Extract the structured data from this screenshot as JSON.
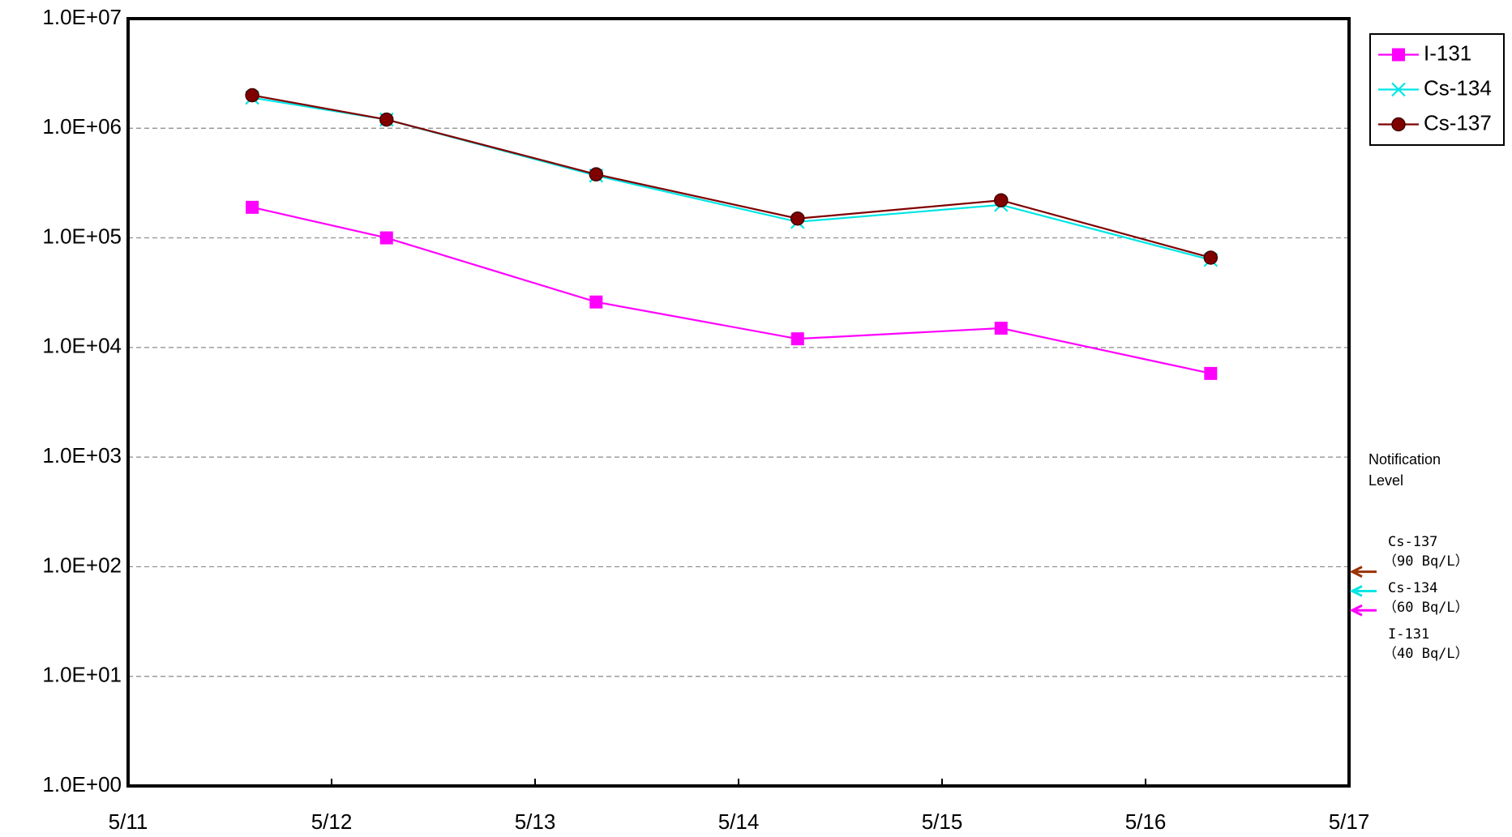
{
  "chart_data": {
    "type": "line",
    "log_y": true,
    "grid": true,
    "legend": "top-right",
    "x": [
      11.61,
      12.27,
      13.3,
      14.29,
      15.29,
      16.32
    ],
    "xlim": [
      11,
      17
    ],
    "xticks": [
      {
        "value": 11,
        "label": "5/11"
      },
      {
        "value": 12,
        "label": "5/12"
      },
      {
        "value": 13,
        "label": "5/13"
      },
      {
        "value": 14,
        "label": "5/14"
      },
      {
        "value": 15,
        "label": "5/15"
      },
      {
        "value": 16,
        "label": "5/16"
      },
      {
        "value": 17,
        "label": "5/17"
      }
    ],
    "ylim": [
      1,
      10000000
    ],
    "yticks": [
      {
        "value": 1,
        "label": "1.0E+00"
      },
      {
        "value": 10,
        "label": "1.0E+01"
      },
      {
        "value": 100,
        "label": "1.0E+02"
      },
      {
        "value": 1000,
        "label": "1.0E+03"
      },
      {
        "value": 10000,
        "label": "1.0E+04"
      },
      {
        "value": 100000,
        "label": "1.0E+05"
      },
      {
        "value": 1000000,
        "label": "1.0E+06"
      },
      {
        "value": 10000000,
        "label": "1.0E+07"
      }
    ],
    "series": [
      {
        "name": "I-131",
        "color": "#ff00ff",
        "marker": "square",
        "values": [
          190000,
          100000,
          26000,
          12000,
          15000,
          5800
        ]
      },
      {
        "name": "Cs-134",
        "color": "#00e5e5",
        "marker": "x",
        "values": [
          1900000,
          1200000,
          370000,
          140000,
          200000,
          63000
        ]
      },
      {
        "name": "Cs-137",
        "color": "#800000",
        "marker": "circle",
        "values": [
          2000000,
          1200000,
          380000,
          150000,
          220000,
          66000
        ]
      }
    ],
    "notification_title": "Notification Level",
    "notification_levels": [
      {
        "label": "Cs-137",
        "value": 90,
        "value_label": "（90 Bq/L）",
        "color": "#993300"
      },
      {
        "label": "Cs-134",
        "value": 60,
        "value_label": "（60 Bq/L）",
        "color": "#00e5e5"
      },
      {
        "label": "I-131",
        "value": 40,
        "value_label": "（40 Bq/L）",
        "color": "#ff00ff"
      }
    ]
  }
}
